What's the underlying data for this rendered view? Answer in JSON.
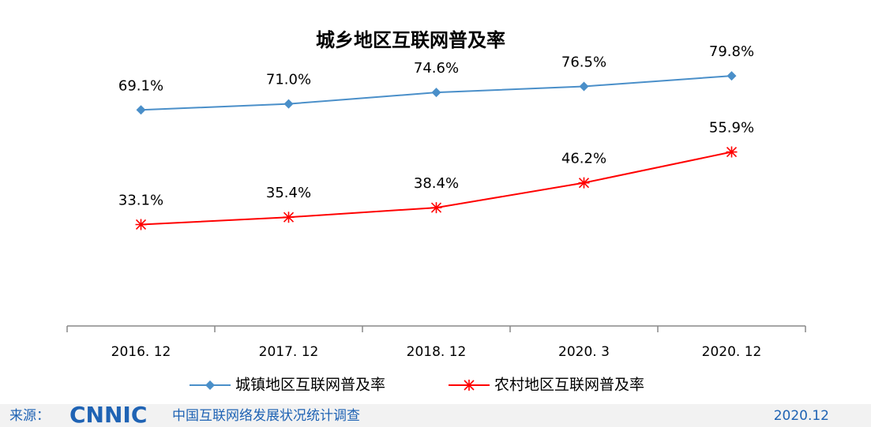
{
  "chart_data": {
    "type": "line",
    "title": "城乡地区互联网普及率",
    "categories": [
      "2016. 12",
      "2017. 12",
      "2018. 12",
      "2020. 3",
      "2020. 12"
    ],
    "series": [
      {
        "name": "城镇地区互联网普及率",
        "color": "#4a8fc9",
        "marker": "diamond",
        "values": [
          69.1,
          71.0,
          74.6,
          76.5,
          79.8
        ],
        "value_labels": [
          "69.1%",
          "71.0%",
          "74.6%",
          "76.5%",
          "79.8%"
        ]
      },
      {
        "name": "农村地区互联网普及率",
        "color": "#ff0000",
        "marker": "star",
        "values": [
          33.1,
          35.4,
          38.4,
          46.2,
          55.9
        ],
        "value_labels": [
          "33.1%",
          "35.4%",
          "38.4%",
          "46.2%",
          "55.9%"
        ]
      }
    ],
    "ylim": [
      0,
      90
    ],
    "legend": "bottom"
  },
  "footer": {
    "source": "来源：",
    "logo": "CNNIC",
    "text": "中国互联网络发展状况统计调查",
    "date": "2020.12"
  }
}
